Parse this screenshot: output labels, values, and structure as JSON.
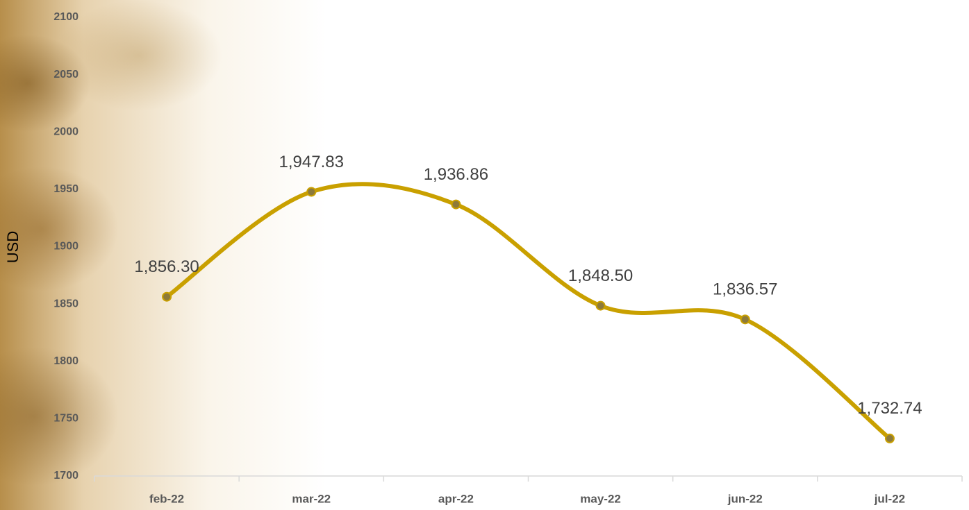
{
  "chart_data": {
    "type": "line",
    "y_label": "USD",
    "categories": [
      "feb-22",
      "mar-22",
      "apr-22",
      "may-22",
      "jun-22",
      "jul-22"
    ],
    "series": [
      {
        "name": "USD",
        "color": "#c9a000",
        "values": [
          1856.3,
          1947.83,
          1936.86,
          1848.5,
          1836.57,
          1732.74
        ],
        "value_labels": [
          "1,856.30",
          "1,947.83",
          "1,936.86",
          "1,848.50",
          "1,836.57",
          "1,732.74"
        ]
      }
    ],
    "ylim": [
      1700,
      2100
    ],
    "yticks": [
      1700,
      1750,
      1800,
      1850,
      1900,
      1950,
      2000,
      2050,
      2100
    ],
    "smooth": true
  }
}
